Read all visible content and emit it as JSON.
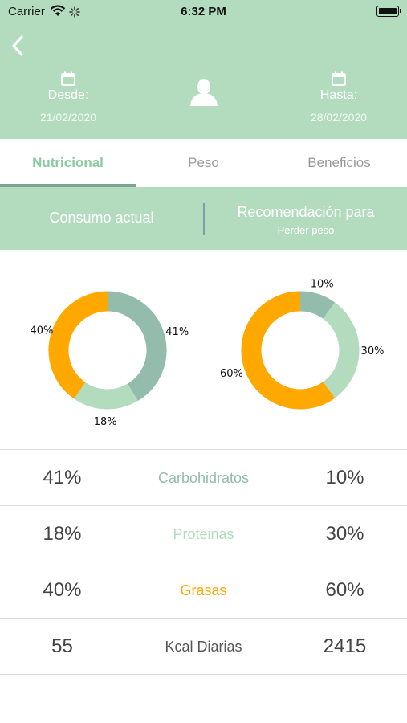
{
  "status_bar": {
    "carrier": "Carrier",
    "time": "6:32 PM"
  },
  "header": {
    "from_label": "Desde:",
    "from_date": "21/02/2020",
    "to_label": "Hasta:",
    "to_date": "28/02/2020"
  },
  "tabs": [
    {
      "label": "Nutricional",
      "active": true
    },
    {
      "label": "Peso",
      "active": false
    },
    {
      "label": "Beneficios",
      "active": false
    }
  ],
  "compare": {
    "left_title": "Consumo actual",
    "right_title": "Recomendación para",
    "right_subtitle": "Perder peso"
  },
  "colors": {
    "carbs": "#94bcad",
    "protein": "#b3dcbf",
    "fat": "#ffa800"
  },
  "chart_data": [
    {
      "type": "pie",
      "series": [
        {
          "label": "41%",
          "value": 41,
          "color": "#94bcad"
        },
        {
          "label": "18%",
          "value": 18,
          "color": "#b3dcbf"
        },
        {
          "label": "40%",
          "value": 40,
          "color": "#ffa800"
        }
      ]
    },
    {
      "type": "pie",
      "series": [
        {
          "label": "10%",
          "value": 10,
          "color": "#94bcad"
        },
        {
          "label": "30%",
          "value": 30,
          "color": "#b3dcbf"
        },
        {
          "label": "60%",
          "value": 60,
          "color": "#ffa800"
        }
      ]
    }
  ],
  "table": {
    "rows": [
      {
        "left": "41%",
        "name": "Carbohidratos",
        "right": "10%",
        "color": "#94bcad"
      },
      {
        "left": "18%",
        "name": "Proteinas",
        "right": "30%",
        "color": "#b3dcbf"
      },
      {
        "left": "40%",
        "name": "Grasas",
        "right": "60%",
        "color": "#ffa800"
      },
      {
        "left": "55",
        "name": "Kcal Diarias",
        "right": "2415",
        "color": "#555555"
      }
    ]
  }
}
